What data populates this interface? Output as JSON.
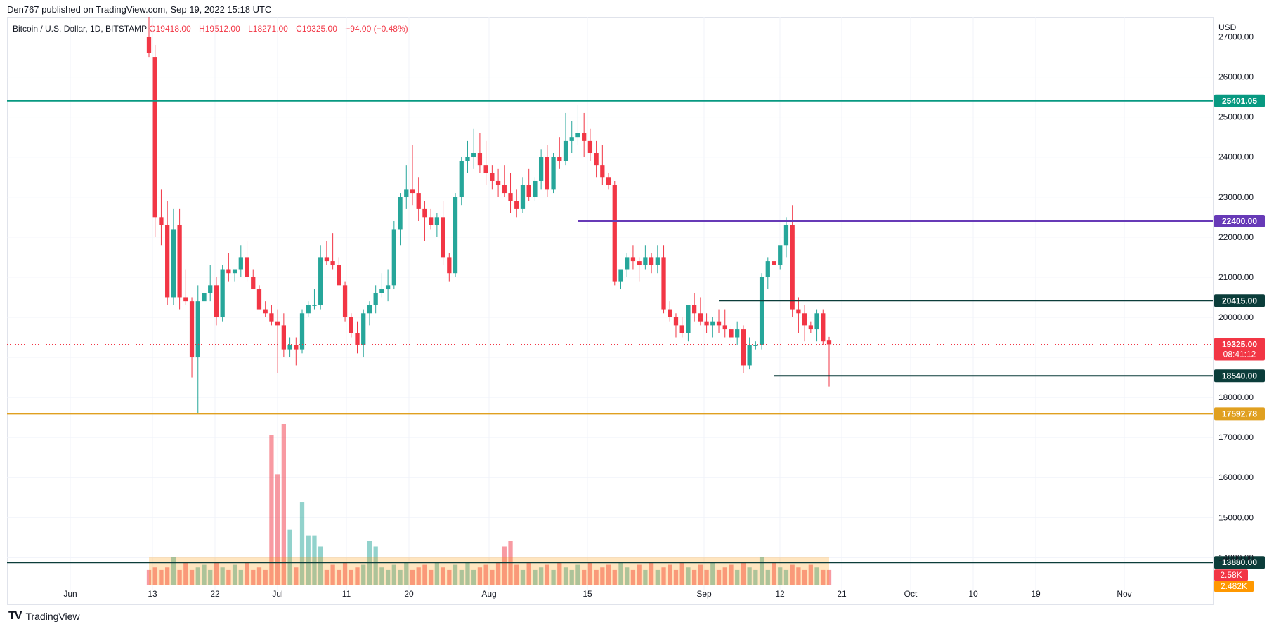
{
  "header": {
    "published": "Den767 published on TradingView.com, Sep 19, 2022 15:18 UTC"
  },
  "legend": {
    "symbol": "Bitcoin / U.S. Dollar, 1D, BITSTAMP",
    "open": "O19418.00",
    "high": "H19512.00",
    "low": "L18271.00",
    "close": "C19325.00",
    "change": "−94.00 (−0.48%)"
  },
  "footer": {
    "brand": "TradingView"
  },
  "colors": {
    "up": "#26a69a",
    "down": "#f23645",
    "teal_line": "#089981",
    "purple_line": "#673ab7",
    "dark_line": "#0b3d3a",
    "orange_line": "#e0a020"
  },
  "chart_data": {
    "type": "candlestick",
    "currency": "USD",
    "y_ticks": [
      "27000.00",
      "26000.00",
      "25000.00",
      "24000.00",
      "23000.00",
      "22000.00",
      "21000.00",
      "20000.00",
      "19000.00",
      "18000.00",
      "17000.00",
      "16000.00",
      "15000.00",
      "14000.00"
    ],
    "x_ticks": [
      "Jun",
      "13",
      "22",
      "Jul",
      "11",
      "20",
      "Aug",
      "15",
      "Sep",
      "12",
      "21",
      "Oct",
      "10",
      "19",
      "Nov"
    ],
    "ylim": [
      13200,
      27500
    ],
    "candles_ohlc": [
      [
        27000,
        27500,
        26500,
        26600
      ],
      [
        26500,
        26800,
        22000,
        22500
      ],
      [
        22500,
        23200,
        21800,
        22300
      ],
      [
        22300,
        22900,
        20300,
        20500
      ],
      [
        20500,
        22700,
        20300,
        22200
      ],
      [
        22300,
        22700,
        20200,
        20500
      ],
      [
        20500,
        21200,
        20300,
        20400
      ],
      [
        20400,
        20500,
        18500,
        19000
      ],
      [
        19000,
        20800,
        17600,
        20400
      ],
      [
        20400,
        21000,
        20200,
        20600
      ],
      [
        20600,
        21300,
        20400,
        20800
      ],
      [
        20800,
        21000,
        19800,
        20000
      ],
      [
        20000,
        21300,
        19900,
        21200
      ],
      [
        21200,
        21600,
        20900,
        21100
      ],
      [
        21100,
        21200,
        20900,
        21200
      ],
      [
        21200,
        21800,
        21000,
        21500
      ],
      [
        21500,
        21900,
        20900,
        21000
      ],
      [
        21000,
        21200,
        20700,
        20700
      ],
      [
        20700,
        20800,
        20200,
        20200
      ],
      [
        20200,
        20400,
        20000,
        20100
      ],
      [
        20100,
        20300,
        19800,
        19900
      ],
      [
        19900,
        20200,
        18600,
        19800
      ],
      [
        19800,
        20100,
        19000,
        19200
      ],
      [
        19200,
        19500,
        19000,
        19300
      ],
      [
        19300,
        19500,
        18800,
        19200
      ],
      [
        19200,
        20200,
        19100,
        20100
      ],
      [
        20100,
        20400,
        20000,
        20300
      ],
      [
        20300,
        20700,
        20200,
        20300
      ],
      [
        20300,
        21800,
        20200,
        21500
      ],
      [
        21500,
        21900,
        21300,
        21400
      ],
      [
        21400,
        22100,
        21200,
        21300
      ],
      [
        21300,
        21500,
        20800,
        20800
      ],
      [
        20800,
        20900,
        19900,
        20000
      ],
      [
        20000,
        20100,
        19500,
        19600
      ],
      [
        19600,
        19900,
        19100,
        19300
      ],
      [
        19300,
        20200,
        19000,
        20100
      ],
      [
        20100,
        20400,
        19800,
        20300
      ],
      [
        20300,
        20800,
        20100,
        20600
      ],
      [
        20600,
        21100,
        20500,
        20700
      ],
      [
        20700,
        21200,
        20400,
        20800
      ],
      [
        20800,
        22400,
        20700,
        22200
      ],
      [
        22200,
        23100,
        21800,
        23000
      ],
      [
        23000,
        23800,
        22700,
        23200
      ],
      [
        23200,
        24300,
        22800,
        23100
      ],
      [
        23100,
        23500,
        22400,
        22700
      ],
      [
        22700,
        22900,
        21900,
        22500
      ],
      [
        22500,
        22700,
        22200,
        22300
      ],
      [
        22300,
        22600,
        22000,
        22500
      ],
      [
        22500,
        22900,
        21300,
        21500
      ],
      [
        21500,
        21600,
        20900,
        21100
      ],
      [
        21100,
        23100,
        21000,
        23000
      ],
      [
        23000,
        24000,
        22800,
        23900
      ],
      [
        23900,
        24400,
        23600,
        24000
      ],
      [
        24000,
        24700,
        23700,
        24100
      ],
      [
        24100,
        24600,
        23600,
        23800
      ],
      [
        23800,
        24400,
        23300,
        23600
      ],
      [
        23600,
        23800,
        23200,
        23400
      ],
      [
        23400,
        23700,
        23000,
        23300
      ],
      [
        23300,
        23800,
        23000,
        23100
      ],
      [
        23100,
        23600,
        22600,
        22900
      ],
      [
        22900,
        23200,
        22500,
        22700
      ],
      [
        22700,
        23500,
        22600,
        23300
      ],
      [
        23300,
        23700,
        22900,
        23000
      ],
      [
        23000,
        23500,
        22900,
        23400
      ],
      [
        23400,
        24200,
        23200,
        24000
      ],
      [
        24000,
        24300,
        23000,
        23200
      ],
      [
        23200,
        24100,
        23100,
        24000
      ],
      [
        24000,
        24500,
        23700,
        23900
      ],
      [
        23900,
        25100,
        23800,
        24400
      ],
      [
        24400,
        24900,
        24100,
        24500
      ],
      [
        24500,
        25300,
        24300,
        24600
      ],
      [
        24600,
        25100,
        24000,
        24400
      ],
      [
        24400,
        24700,
        23900,
        24100
      ],
      [
        24100,
        24400,
        23500,
        23800
      ],
      [
        23800,
        24300,
        23300,
        23500
      ],
      [
        23500,
        23600,
        23200,
        23300
      ],
      [
        23300,
        23400,
        20800,
        20900
      ],
      [
        20900,
        21200,
        20700,
        21200
      ],
      [
        21200,
        21600,
        21000,
        21500
      ],
      [
        21500,
        21800,
        21200,
        21400
      ],
      [
        21400,
        21500,
        20900,
        21300
      ],
      [
        21300,
        21800,
        21200,
        21500
      ],
      [
        21500,
        21600,
        21100,
        21300
      ],
      [
        21300,
        21800,
        21100,
        21500
      ],
      [
        21500,
        21800,
        20100,
        20200
      ],
      [
        20200,
        20400,
        19900,
        20000
      ],
      [
        20000,
        20100,
        19500,
        19800
      ],
      [
        19800,
        20000,
        19500,
        19600
      ],
      [
        19600,
        20300,
        19400,
        20300
      ],
      [
        20300,
        20600,
        19900,
        20100
      ],
      [
        20100,
        20500,
        19800,
        19900
      ],
      [
        19900,
        20100,
        19600,
        19800
      ],
      [
        19800,
        20000,
        19500,
        19900
      ],
      [
        19900,
        20200,
        19600,
        19800
      ],
      [
        19800,
        20200,
        19500,
        19700
      ],
      [
        19700,
        19800,
        19400,
        19500
      ],
      [
        19500,
        19900,
        19300,
        19700
      ],
      [
        19700,
        19800,
        18600,
        18800
      ],
      [
        18800,
        19500,
        18700,
        19300
      ],
      [
        19300,
        19400,
        19200,
        19300
      ],
      [
        19300,
        21100,
        19200,
        21000
      ],
      [
        21000,
        21500,
        20700,
        21400
      ],
      [
        21400,
        21600,
        21100,
        21300
      ],
      [
        21300,
        21700,
        21200,
        21800
      ],
      [
        21800,
        22500,
        21500,
        22300
      ],
      [
        22300,
        22800,
        20000,
        20200
      ],
      [
        20200,
        20500,
        19600,
        20100
      ],
      [
        20100,
        20300,
        19400,
        19800
      ],
      [
        19800,
        19900,
        19600,
        19700
      ],
      [
        19700,
        20200,
        19400,
        20100
      ],
      [
        20100,
        20200,
        19300,
        19400
      ],
      [
        19418,
        19512,
        18271,
        19325
      ]
    ],
    "volume_ratio": [
      0.3,
      0.35,
      0.3,
      0.35,
      0.55,
      0.3,
      0.45,
      0.3,
      0.35,
      0.4,
      0.3,
      0.45,
      0.35,
      0.3,
      0.4,
      0.3,
      0.45,
      0.3,
      0.35,
      0.3,
      0.4,
      0.3,
      0.45,
      0.3,
      0.35,
      0.4,
      0.3,
      0.45,
      0.35,
      0.3,
      0.4,
      0.3,
      0.45,
      0.3,
      0.35,
      0.4,
      0.3,
      0.45,
      0.35,
      0.3,
      0.4,
      0.3,
      0.45,
      0.3,
      0.35,
      0.4,
      0.3,
      0.45,
      0.35,
      0.3,
      0.4,
      0.3,
      0.45,
      0.3,
      0.35,
      0.4,
      0.3,
      0.45,
      0.35,
      0.3,
      0.4,
      0.3,
      0.45,
      0.3,
      0.35,
      0.4,
      0.3,
      0.45,
      0.35,
      0.3,
      0.4,
      0.3,
      0.45,
      0.3,
      0.35,
      0.4,
      0.3,
      0.45,
      0.35,
      0.3,
      0.4,
      0.3,
      0.45,
      0.3,
      0.35,
      0.4,
      0.3,
      0.45,
      0.35,
      0.3,
      0.4,
      0.3,
      0.45,
      0.3,
      0.35,
      0.4,
      0.3,
      0.45,
      0.35,
      0.3,
      0.55,
      0.3,
      0.45,
      0.35,
      0.3,
      0.4,
      0.35,
      0.3,
      0.4,
      0.35,
      0.3,
      0.3
    ],
    "volume_highlights": [
      {
        "index": 20,
        "ratio": 1.35,
        "dir": "down"
      },
      {
        "index": 21,
        "ratio": 1.0,
        "dir": "down"
      },
      {
        "index": 22,
        "ratio": 1.45,
        "dir": "up"
      },
      {
        "index": 23,
        "ratio": 0.5,
        "dir": "up"
      },
      {
        "index": 25,
        "ratio": 0.75,
        "dir": "down"
      },
      {
        "index": 26,
        "ratio": 0.45,
        "dir": "up"
      },
      {
        "index": 27,
        "ratio": 0.45,
        "dir": "down"
      },
      {
        "index": 28,
        "ratio": 0.35,
        "dir": "down"
      },
      {
        "index": 36,
        "ratio": 0.4,
        "dir": "down"
      },
      {
        "index": 37,
        "ratio": 0.35,
        "dir": "down"
      },
      {
        "index": 58,
        "ratio": 0.35,
        "dir": "up"
      },
      {
        "index": 59,
        "ratio": 0.4,
        "dir": "up"
      }
    ],
    "levels": [
      {
        "price": 25401.05,
        "label": "25401.05",
        "color": "#089981",
        "from_index": 0
      },
      {
        "price": 22400.0,
        "label": "22400.00",
        "color": "#673ab7",
        "from_index": 70
      },
      {
        "price": 20415.0,
        "label": "20415.00",
        "color": "#0b3d3a",
        "from_index": 93
      },
      {
        "price": 18540.0,
        "label": "18540.00",
        "color": "#0b3d3a",
        "from_index": 102
      },
      {
        "price": 17592.78,
        "label": "17592.78",
        "color": "#e0a020",
        "from_index": 0
      },
      {
        "price": 13880.0,
        "label": "13880.00",
        "color": "#0b3d3a",
        "from_index": 0
      }
    ],
    "last_price": {
      "label": "19325.00",
      "countdown": "08:41:12"
    },
    "volume_labels": [
      "2.58K",
      "2.482K"
    ]
  }
}
